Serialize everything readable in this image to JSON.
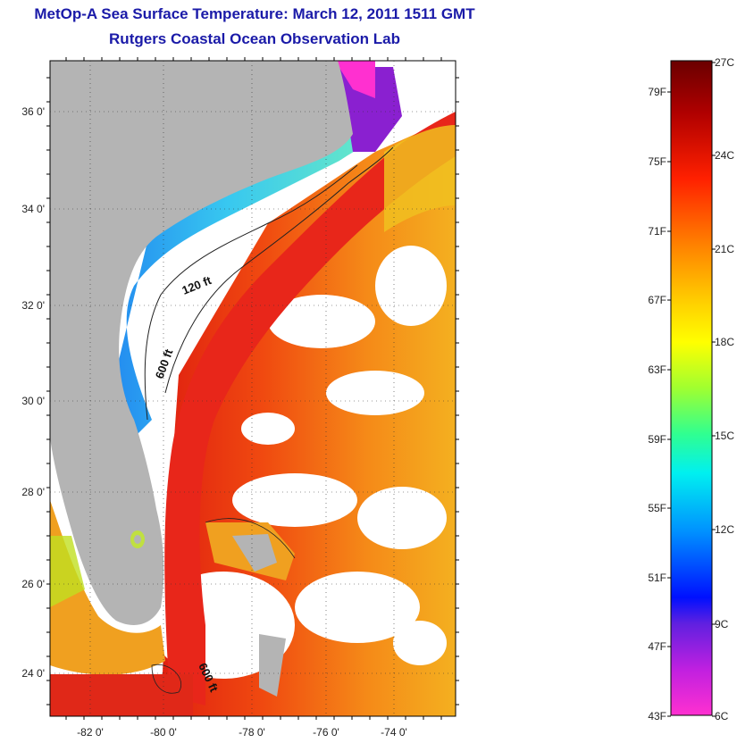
{
  "header": {
    "title": "MetOp-A Sea Surface Temperature:  March 12, 2011 1511 GMT",
    "subtitle": "Rutgers Coastal Ocean Observation Lab"
  },
  "map": {
    "lat_ticks": [
      "36 0'",
      "34 0'",
      "32 0'",
      "30 0'",
      "28 0'",
      "26 0'",
      "24 0'"
    ],
    "lon_ticks": [
      "-82 0'",
      "-80 0'",
      "-78 0'",
      "-76 0'",
      "-74 0'"
    ],
    "contours": [
      "120 ft",
      "600 ft",
      "600 ft"
    ],
    "colors": {
      "land": "#b4b4b4",
      "cloud": "#ffffff",
      "gulf_stream": "#e8261a",
      "shelf": "#2aa8f0"
    }
  },
  "colorbar": {
    "fahrenheit": [
      "79F",
      "75F",
      "71F",
      "67F",
      "63F",
      "59F",
      "55F",
      "51F",
      "47F",
      "43F"
    ],
    "celsius": [
      "27C",
      "24C",
      "21C",
      "18C",
      "15C",
      "12C",
      "9C",
      "6C"
    ]
  }
}
